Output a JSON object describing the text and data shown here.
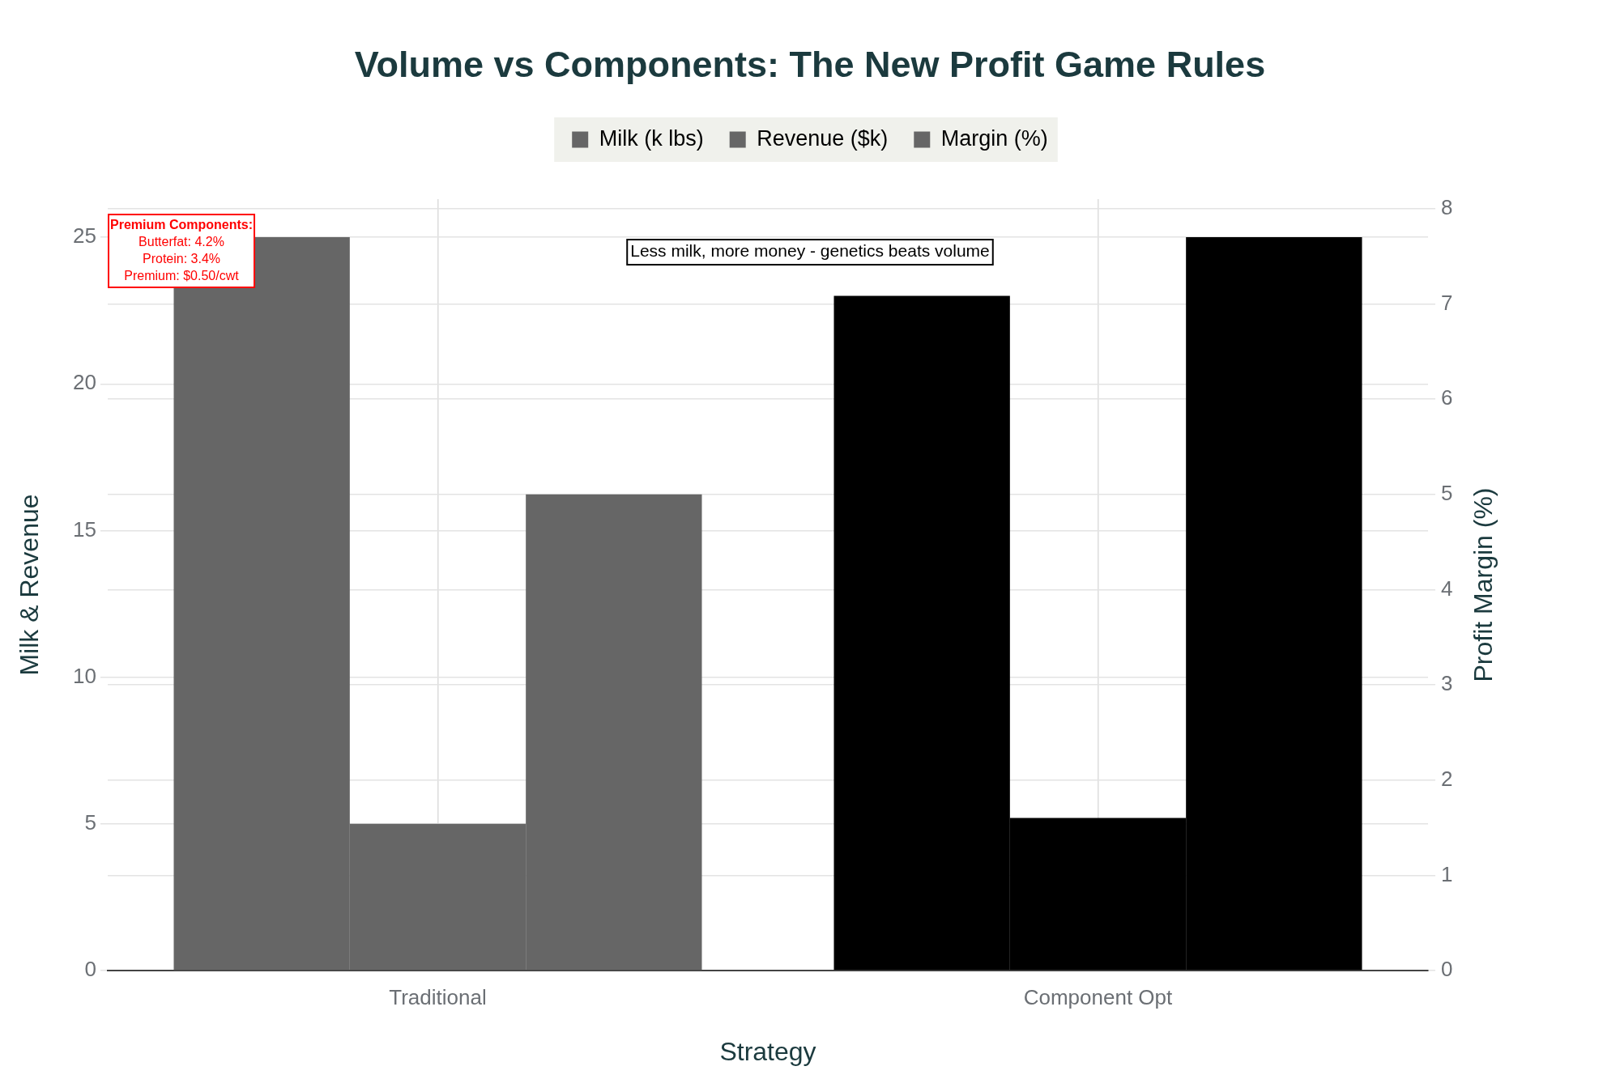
{
  "chart_data": {
    "type": "bar",
    "title": "Volume vs Components: The New Profit Game Rules",
    "xlabel": "Strategy",
    "ylabel": "Milk & Revenue",
    "y2label": "Profit Margin (%)",
    "categories": [
      "Traditional",
      "Component Opt"
    ],
    "series": [
      {
        "name": "Milk (k lbs)",
        "color": "#666666",
        "colors": [
          "#666666",
          "#000000"
        ],
        "values": [
          25,
          23
        ]
      },
      {
        "name": "Revenue ($k)",
        "color": "#666666",
        "colors": [
          "#666666",
          "#000000"
        ],
        "values": [
          5,
          5.2
        ]
      },
      {
        "name": "Margin (%)",
        "color": "#666666",
        "colors": [
          "#666666",
          "#000000"
        ],
        "values": [
          5,
          7.7
        ],
        "axis": "y2"
      }
    ],
    "ylim": [
      0,
      26.3
    ],
    "yticks": [
      0,
      5,
      10,
      15,
      20,
      25
    ],
    "y2lim": [
      0,
      8.1
    ],
    "y2ticks": [
      0,
      1,
      2,
      3,
      4,
      5,
      6,
      7,
      8
    ],
    "grid": true,
    "legend": "top",
    "annotations": [
      "Premium Components:\nButterfat: 4.2%\nProtein: 3.4%\nPremium: $0.50/cwt",
      "Less milk, more money - genetics beats volume"
    ]
  }
}
